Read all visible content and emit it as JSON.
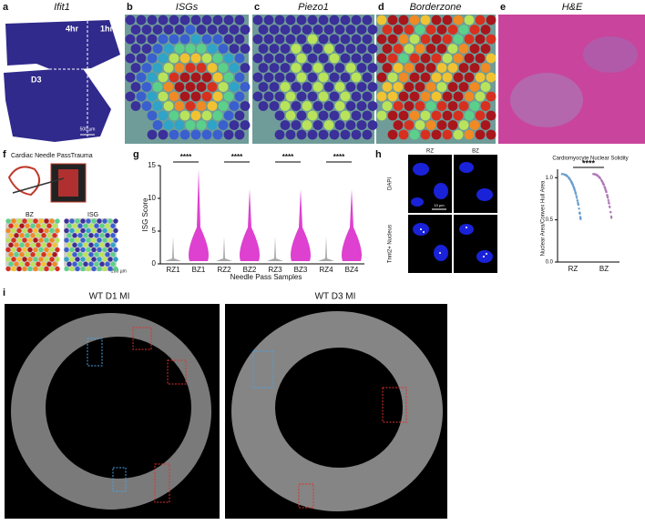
{
  "figure": {
    "a": {
      "label": "a",
      "title": "Ifit1",
      "annotations": [
        "4hr",
        "1hr",
        "D3"
      ],
      "scale_bar": "500 µm"
    },
    "b": {
      "label": "b",
      "title": "ISGs"
    },
    "c": {
      "label": "c",
      "title": "Piezo1"
    },
    "d": {
      "label": "d",
      "title": "Borderzone"
    },
    "e": {
      "label": "e",
      "title": "H&E"
    },
    "f": {
      "label": "f",
      "title": "Cardiac Needle PassTrauma",
      "annotations": [
        "BZ",
        "ISG"
      ],
      "scale_bar": "200 µm"
    },
    "g": {
      "label": "g",
      "chart_data": {
        "type": "violin",
        "y_label": "ISG Score",
        "x_label": "Needle Pass Samples",
        "categories": [
          "RZ1",
          "BZ1",
          "RZ2",
          "BZ2",
          "RZ3",
          "BZ3",
          "RZ4",
          "BZ4"
        ],
        "ylim": [
          0,
          15
        ],
        "yticks": [
          0,
          5,
          10,
          15
        ],
        "significance": [
          "****",
          "****",
          "****",
          "****"
        ]
      }
    },
    "h": {
      "label": "h",
      "columns": [
        "RZ",
        "BZ"
      ],
      "rows": [
        "DAPI",
        "Tnnt2+ Nucleus"
      ],
      "scale_bar": "10 µm",
      "chart_data": {
        "type": "dot",
        "title": "Cardiomyocyte Nuclear Solidity",
        "y_label": "Nuclear Area/Convex Hull Area",
        "categories": [
          "RZ",
          "BZ"
        ],
        "ylim": [
          0,
          1.1
        ],
        "yticks": [
          {
            "value": 0,
            "label": "0.0"
          },
          {
            "value": 0.5,
            "label": "0.5"
          },
          {
            "value": 1,
            "label": "1.0"
          }
        ],
        "significance": "****"
      }
    },
    "i": {
      "label": "i",
      "titles": [
        "WT D1 MI",
        "WT D3 MI"
      ]
    }
  }
}
